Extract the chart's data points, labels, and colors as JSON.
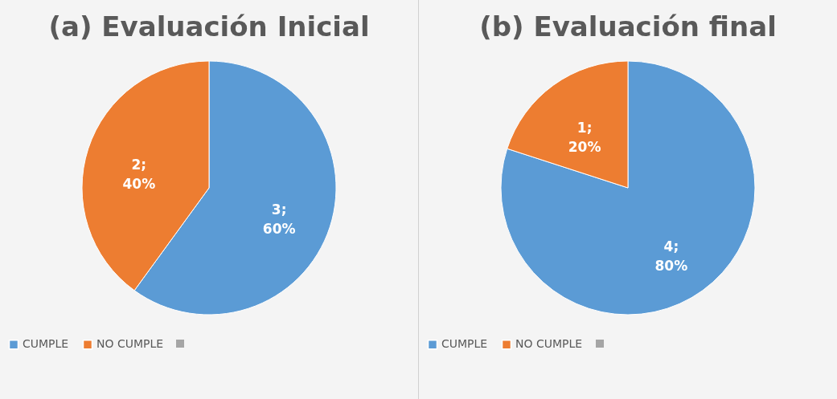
{
  "chart_data": [
    {
      "type": "pie",
      "title": "(a) Evaluación Inicial",
      "categories": [
        "CUMPLE",
        "NO CUMPLE"
      ],
      "values": [
        3,
        2
      ],
      "colors": [
        "#5b9bd5",
        "#ed7d31"
      ],
      "value_labels": [
        "3; 60%",
        "2; 40%"
      ],
      "legend": "bottom"
    },
    {
      "type": "pie",
      "title": "(b) Evaluación final",
      "categories": [
        "CUMPLE",
        "NO CUMPLE"
      ],
      "values": [
        4,
        1
      ],
      "colors": [
        "#5b9bd5",
        "#ed7d31"
      ],
      "value_labels": [
        "4; 80%",
        "1; 20%"
      ],
      "legend": "bottom"
    }
  ]
}
